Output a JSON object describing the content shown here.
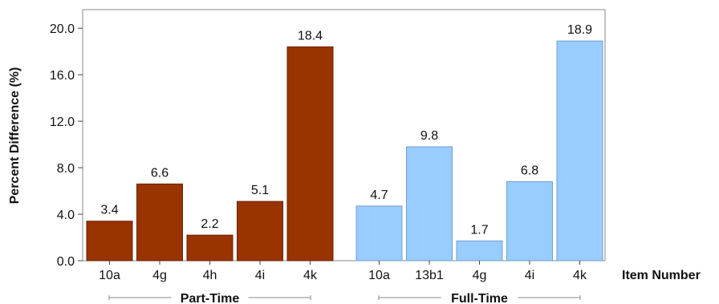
{
  "chart_data": {
    "type": "bar",
    "ylabel": "Percent Difference (%)",
    "xlabel": "Item Number",
    "ylim": [
      0,
      21.6
    ],
    "yticks": [
      "0.0",
      "4.0",
      "8.0",
      "12.0",
      "16.0",
      "20.0"
    ],
    "grid": false,
    "groups": [
      {
        "name": "Part-Time",
        "color": "#993300",
        "categories": [
          "10a",
          "4g",
          "4h",
          "4i",
          "4k"
        ],
        "values": [
          3.4,
          6.6,
          2.2,
          5.1,
          18.4
        ],
        "labels": [
          "3.4",
          "6.6",
          "2.2",
          "5.1",
          "18.4"
        ]
      },
      {
        "name": "Full-Time",
        "color": "#99CCFF",
        "categories": [
          "10a",
          "13b1",
          "4g",
          "4i",
          "4k"
        ],
        "values": [
          4.7,
          9.8,
          1.7,
          6.8,
          18.9
        ],
        "labels": [
          "4.7",
          "9.8",
          "1.7",
          "6.8",
          "18.9"
        ]
      }
    ]
  }
}
